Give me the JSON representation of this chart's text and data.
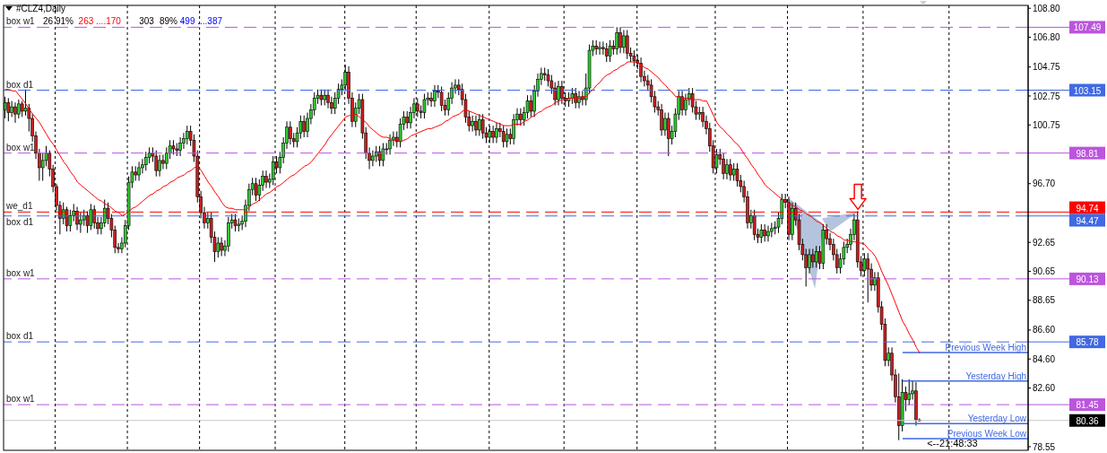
{
  "chart_data": {
    "type": "candlestick",
    "title": "#CLZ4,Daily",
    "annotations": [
      "26 91%",
      "263 ....170",
      "303",
      "89%",
      "499 ....387",
      "<--21:48:33",
      {
        "text": "box w1",
        "y": 107.49
      },
      {
        "text": "box d1",
        "y": 103.15
      },
      {
        "text": "box w1",
        "y": 98.81
      },
      {
        "text": "we_d1",
        "y": 94.74
      },
      {
        "text": "box d1",
        "y": 94.47
      },
      {
        "text": "box w1",
        "y": 90.13
      },
      {
        "text": "box d1",
        "y": 85.78
      },
      {
        "text": "box w1",
        "y": 81.45
      }
    ],
    "categories": [
      null,
      null,
      null,
      null,
      null,
      null,
      null,
      null,
      null,
      null,
      null,
      null,
      null,
      null,
      null,
      null,
      null,
      null,
      null,
      null,
      null,
      null,
      null,
      null,
      null,
      null,
      null,
      null,
      null,
      null,
      null,
      null,
      null,
      null,
      null,
      null,
      null,
      null,
      null,
      null,
      null,
      null,
      null,
      null,
      null,
      null,
      null,
      null,
      null,
      null,
      null,
      null,
      null,
      null,
      null,
      null,
      null,
      null,
      null,
      null,
      null,
      null,
      null,
      null,
      null,
      null,
      null,
      null,
      null,
      null,
      null,
      null,
      null,
      null,
      null,
      null,
      null,
      null,
      null,
      null,
      null,
      null,
      null,
      null,
      null,
      null,
      null,
      null,
      null,
      null,
      null,
      null,
      null,
      null,
      null,
      null,
      null,
      null,
      null,
      null,
      null,
      null,
      null,
      null,
      null,
      null,
      null,
      null,
      null,
      null,
      null,
      null,
      null,
      null,
      null,
      null,
      null,
      null,
      null,
      null,
      null,
      null,
      null,
      null,
      null,
      null,
      null,
      null,
      null,
      null,
      null,
      null,
      null,
      null,
      null,
      null,
      null,
      null,
      null,
      null,
      null,
      null,
      null,
      null,
      null,
      null,
      null,
      null,
      null,
      null,
      null,
      null,
      null,
      null,
      null,
      null,
      null,
      null,
      null,
      null,
      null,
      null,
      null,
      null,
      null,
      null,
      null,
      null,
      null,
      null,
      null,
      null,
      null,
      null,
      null,
      null,
      null,
      null,
      null,
      null,
      null,
      null,
      null,
      null,
      null,
      null,
      null,
      null,
      null,
      null,
      null,
      null,
      null,
      null,
      null,
      null,
      null,
      null,
      null,
      null,
      null,
      null,
      null,
      null,
      null,
      null,
      null,
      null,
      null,
      null,
      null,
      null,
      null,
      null,
      null,
      null,
      null,
      null,
      null,
      null,
      null,
      null,
      null,
      null,
      null,
      null,
      null,
      null,
      null,
      null,
      null,
      null,
      null,
      null,
      null,
      null,
      null,
      null,
      null,
      null,
      null,
      null,
      null,
      null,
      null,
      null,
      null,
      null,
      null,
      null,
      null,
      null,
      null,
      null,
      null,
      null,
      null,
      null,
      null,
      null,
      null,
      null,
      null,
      null,
      null,
      null,
      null
    ],
    "ohlc": [
      [
        101.8,
        102.7,
        101.2,
        102.3
      ],
      [
        102.3,
        102.6,
        101.0,
        101.6
      ],
      [
        101.6,
        102.4,
        101.3,
        102.0
      ],
      [
        102.0,
        102.3,
        100.9,
        101.5
      ],
      [
        101.5,
        102.5,
        101.2,
        102.2
      ],
      [
        102.2,
        102.4,
        101.3,
        101.7
      ],
      [
        101.7,
        103.2,
        101.4,
        101.9
      ],
      [
        101.9,
        102.2,
        100.3,
        101.2
      ],
      [
        101.2,
        101.5,
        99.6,
        100.0
      ],
      [
        100.0,
        100.3,
        98.4,
        98.8
      ],
      [
        98.8,
        99.1,
        96.9,
        97.8
      ],
      [
        97.8,
        98.8,
        96.9,
        98.3
      ],
      [
        98.3,
        99.3,
        97.9,
        98.8
      ],
      [
        98.8,
        99.0,
        97.2,
        97.7
      ],
      [
        97.7,
        98.0,
        96.1,
        96.5
      ],
      [
        96.5,
        96.7,
        94.8,
        95.2
      ],
      [
        95.2,
        95.5,
        93.2,
        94.3
      ],
      [
        94.3,
        95.4,
        93.9,
        94.9
      ],
      [
        94.9,
        95.1,
        93.4,
        93.8
      ],
      [
        93.8,
        94.9,
        93.4,
        94.5
      ],
      [
        94.5,
        95.3,
        94.1,
        94.8
      ],
      [
        94.8,
        95.1,
        93.5,
        93.9
      ],
      [
        93.9,
        94.7,
        93.3,
        94.2
      ],
      [
        94.2,
        94.9,
        93.8,
        94.5
      ],
      [
        94.5,
        94.8,
        93.3,
        93.8
      ],
      [
        93.8,
        95.3,
        93.5,
        94.9
      ],
      [
        94.9,
        95.2,
        93.6,
        94.0
      ],
      [
        94.0,
        94.4,
        93.2,
        93.6
      ],
      [
        93.6,
        94.4,
        93.2,
        94.0
      ],
      [
        94.0,
        95.6,
        93.7,
        95.0
      ],
      [
        95.0,
        95.4,
        93.9,
        94.3
      ],
      [
        94.3,
        94.6,
        93.0,
        93.5
      ],
      [
        93.5,
        93.8,
        91.9,
        92.3
      ],
      [
        92.3,
        92.6,
        91.9,
        92.2
      ],
      [
        92.2,
        93.0,
        91.9,
        92.6
      ],
      [
        92.6,
        94.2,
        92.3,
        93.8
      ],
      [
        93.8,
        97.2,
        93.5,
        96.8
      ],
      [
        96.8,
        97.9,
        96.4,
        97.5
      ],
      [
        97.5,
        97.9,
        96.9,
        97.3
      ],
      [
        97.3,
        98.2,
        96.9,
        97.8
      ],
      [
        97.8,
        98.4,
        97.4,
        98.0
      ],
      [
        98.0,
        98.9,
        97.6,
        98.5
      ],
      [
        98.5,
        99.2,
        98.1,
        98.8
      ],
      [
        98.8,
        99.2,
        98.2,
        98.6
      ],
      [
        98.6,
        99.0,
        97.2,
        97.6
      ],
      [
        97.6,
        98.7,
        97.2,
        98.3
      ],
      [
        98.3,
        98.7,
        97.7,
        98.1
      ],
      [
        98.1,
        99.2,
        97.7,
        98.8
      ],
      [
        98.8,
        99.7,
        98.4,
        99.3
      ],
      [
        99.3,
        99.7,
        98.7,
        99.1
      ],
      [
        99.1,
        99.5,
        98.6,
        99.0
      ],
      [
        99.0,
        99.9,
        98.6,
        99.5
      ],
      [
        99.5,
        100.2,
        99.1,
        99.8
      ],
      [
        99.8,
        100.7,
        99.4,
        100.3
      ],
      [
        100.3,
        100.7,
        99.3,
        99.7
      ],
      [
        99.7,
        100.1,
        98.2,
        98.6
      ],
      [
        98.6,
        99.0,
        95.4,
        95.8
      ],
      [
        95.8,
        96.2,
        94.3,
        94.7
      ],
      [
        94.7,
        95.1,
        93.6,
        94.0
      ],
      [
        94.0,
        94.7,
        93.6,
        94.3
      ],
      [
        94.3,
        94.7,
        92.6,
        93.0
      ],
      [
        93.0,
        93.4,
        91.3,
        92.0
      ],
      [
        92.0,
        93.0,
        91.6,
        92.6
      ],
      [
        92.6,
        93.0,
        91.7,
        92.1
      ],
      [
        92.1,
        92.8,
        91.7,
        92.4
      ],
      [
        92.4,
        94.4,
        92.0,
        94.0
      ],
      [
        94.0,
        94.6,
        93.6,
        94.2
      ],
      [
        94.2,
        94.6,
        93.4,
        93.8
      ],
      [
        93.8,
        94.3,
        93.4,
        93.9
      ],
      [
        93.9,
        94.5,
        93.5,
        94.1
      ],
      [
        94.1,
        95.6,
        93.7,
        95.2
      ],
      [
        95.2,
        96.7,
        94.8,
        96.3
      ],
      [
        96.3,
        97.1,
        95.9,
        96.7
      ],
      [
        96.7,
        97.1,
        95.5,
        95.9
      ],
      [
        95.9,
        97.0,
        95.5,
        96.6
      ],
      [
        96.6,
        97.6,
        96.2,
        97.2
      ],
      [
        97.2,
        97.6,
        96.4,
        96.8
      ],
      [
        96.8,
        97.4,
        96.4,
        97.0
      ],
      [
        97.0,
        98.6,
        96.6,
        98.2
      ],
      [
        98.2,
        98.6,
        97.4,
        97.8
      ],
      [
        97.8,
        98.9,
        97.4,
        98.5
      ],
      [
        98.5,
        99.9,
        98.1,
        99.5
      ],
      [
        99.5,
        101.0,
        99.1,
        100.6
      ],
      [
        100.6,
        101.0,
        99.4,
        99.8
      ],
      [
        99.8,
        100.2,
        99.2,
        99.6
      ],
      [
        99.6,
        100.6,
        99.2,
        100.2
      ],
      [
        100.2,
        101.4,
        99.8,
        101.0
      ],
      [
        101.0,
        101.4,
        99.9,
        100.3
      ],
      [
        100.3,
        101.6,
        99.9,
        101.2
      ],
      [
        101.2,
        102.2,
        100.8,
        101.8
      ],
      [
        101.8,
        103.0,
        101.4,
        102.6
      ],
      [
        102.6,
        103.2,
        102.2,
        102.8
      ],
      [
        102.8,
        103.2,
        102.1,
        102.5
      ],
      [
        102.5,
        103.2,
        102.1,
        102.8
      ],
      [
        102.8,
        103.2,
        101.9,
        102.3
      ],
      [
        102.3,
        102.7,
        101.5,
        101.9
      ],
      [
        101.9,
        103.0,
        101.5,
        102.6
      ],
      [
        102.6,
        103.6,
        102.2,
        103.2
      ],
      [
        103.2,
        103.9,
        102.8,
        103.5
      ],
      [
        103.5,
        104.9,
        103.1,
        104.4
      ],
      [
        104.4,
        104.8,
        102.2,
        102.6
      ],
      [
        102.6,
        103.0,
        100.6,
        101.0
      ],
      [
        101.0,
        102.3,
        100.6,
        101.9
      ],
      [
        101.9,
        102.9,
        101.5,
        102.5
      ],
      [
        102.5,
        102.9,
        99.8,
        100.2
      ],
      [
        100.2,
        100.6,
        98.4,
        98.8
      ],
      [
        98.8,
        99.2,
        97.7,
        98.3
      ],
      [
        98.3,
        99.0,
        97.9,
        98.6
      ],
      [
        98.6,
        99.3,
        98.2,
        98.9
      ],
      [
        98.9,
        99.3,
        97.9,
        98.3
      ],
      [
        98.3,
        99.5,
        97.9,
        99.1
      ],
      [
        99.1,
        99.5,
        98.7,
        99.1
      ],
      [
        99.1,
        100.1,
        98.7,
        99.7
      ],
      [
        99.7,
        100.3,
        99.3,
        99.9
      ],
      [
        99.9,
        100.3,
        99.2,
        99.6
      ],
      [
        99.6,
        101.2,
        99.2,
        100.8
      ],
      [
        100.8,
        101.7,
        100.4,
        101.3
      ],
      [
        101.3,
        101.7,
        100.5,
        100.9
      ],
      [
        100.9,
        102.0,
        100.5,
        101.6
      ],
      [
        101.6,
        102.6,
        101.2,
        102.2
      ],
      [
        102.2,
        102.6,
        101.3,
        101.7
      ],
      [
        101.7,
        102.1,
        101.2,
        101.6
      ],
      [
        101.6,
        102.9,
        101.2,
        102.5
      ],
      [
        102.5,
        103.0,
        102.1,
        102.6
      ],
      [
        102.6,
        103.0,
        102.0,
        102.4
      ],
      [
        102.4,
        103.5,
        102.0,
        103.1
      ],
      [
        103.1,
        103.5,
        102.6,
        103.0
      ],
      [
        103.0,
        103.4,
        101.7,
        102.1
      ],
      [
        102.1,
        102.5,
        101.4,
        101.8
      ],
      [
        101.8,
        103.0,
        101.4,
        102.6
      ],
      [
        102.6,
        103.7,
        102.2,
        103.3
      ],
      [
        103.3,
        103.9,
        102.9,
        103.5
      ],
      [
        103.5,
        103.9,
        102.8,
        103.2
      ],
      [
        103.2,
        103.6,
        102.1,
        102.5
      ],
      [
        102.5,
        102.9,
        100.9,
        101.3
      ],
      [
        101.3,
        101.7,
        100.3,
        100.7
      ],
      [
        100.7,
        101.4,
        100.3,
        101.0
      ],
      [
        101.0,
        101.4,
        100.0,
        100.4
      ],
      [
        100.4,
        101.5,
        100.0,
        101.1
      ],
      [
        101.1,
        101.5,
        99.8,
        100.2
      ],
      [
        100.2,
        100.6,
        99.5,
        99.9
      ],
      [
        99.9,
        100.7,
        99.5,
        100.3
      ],
      [
        100.3,
        100.7,
        99.5,
        99.9
      ],
      [
        99.9,
        100.9,
        99.5,
        100.5
      ],
      [
        100.5,
        100.9,
        99.9,
        100.3
      ],
      [
        100.3,
        100.7,
        99.2,
        99.6
      ],
      [
        99.6,
        100.5,
        99.2,
        100.1
      ],
      [
        100.1,
        100.5,
        99.4,
        99.8
      ],
      [
        99.8,
        101.5,
        99.4,
        101.1
      ],
      [
        101.1,
        101.9,
        100.7,
        101.5
      ],
      [
        101.5,
        101.9,
        100.7,
        101.1
      ],
      [
        101.1,
        102.0,
        100.7,
        101.6
      ],
      [
        101.6,
        102.8,
        101.2,
        102.4
      ],
      [
        102.4,
        102.8,
        101.3,
        101.7
      ],
      [
        101.7,
        103.5,
        101.3,
        103.1
      ],
      [
        103.1,
        104.3,
        102.7,
        103.9
      ],
      [
        103.9,
        104.7,
        103.5,
        104.3
      ],
      [
        104.3,
        104.7,
        103.8,
        104.2
      ],
      [
        104.2,
        104.6,
        103.4,
        103.8
      ],
      [
        103.8,
        104.2,
        102.9,
        103.3
      ],
      [
        103.3,
        103.7,
        102.1,
        102.5
      ],
      [
        102.5,
        103.8,
        102.1,
        103.4
      ],
      [
        103.4,
        103.8,
        102.2,
        102.6
      ],
      [
        102.6,
        103.0,
        102.0,
        102.4
      ],
      [
        102.4,
        103.0,
        102.0,
        102.6
      ],
      [
        102.6,
        103.3,
        102.2,
        102.9
      ],
      [
        102.9,
        103.3,
        101.9,
        102.3
      ],
      [
        102.3,
        103.1,
        101.9,
        102.7
      ],
      [
        102.7,
        103.1,
        102.1,
        102.5
      ],
      [
        102.5,
        104.3,
        102.1,
        103.3
      ],
      [
        103.3,
        106.3,
        102.9,
        105.9
      ],
      [
        105.9,
        106.6,
        105.5,
        106.2
      ],
      [
        106.2,
        106.6,
        105.6,
        106.0
      ],
      [
        106.0,
        106.5,
        105.6,
        106.1
      ],
      [
        106.1,
        106.5,
        105.6,
        106.0
      ],
      [
        106.0,
        106.4,
        105.1,
        105.5
      ],
      [
        105.5,
        106.6,
        105.1,
        106.2
      ],
      [
        106.2,
        106.6,
        105.6,
        106.0
      ],
      [
        106.0,
        107.5,
        105.6,
        107.1
      ],
      [
        107.1,
        107.5,
        105.7,
        106.1
      ],
      [
        106.1,
        107.3,
        105.7,
        106.9
      ],
      [
        106.9,
        107.3,
        105.3,
        105.7
      ],
      [
        105.7,
        106.1,
        105.1,
        105.5
      ],
      [
        105.5,
        105.9,
        104.8,
        105.2
      ],
      [
        105.2,
        105.6,
        104.6,
        105.0
      ],
      [
        105.0,
        105.4,
        103.7,
        104.1
      ],
      [
        104.1,
        104.5,
        103.4,
        103.8
      ],
      [
        103.8,
        104.2,
        103.1,
        103.5
      ],
      [
        103.5,
        103.9,
        102.3,
        102.7
      ],
      [
        102.7,
        103.1,
        101.6,
        102.0
      ],
      [
        102.0,
        102.4,
        101.4,
        101.8
      ],
      [
        101.8,
        102.2,
        100.0,
        100.4
      ],
      [
        100.4,
        101.6,
        100.0,
        101.2
      ],
      [
        101.2,
        101.6,
        98.6,
        99.8
      ],
      [
        99.8,
        100.7,
        99.4,
        100.3
      ],
      [
        100.3,
        101.9,
        99.9,
        101.5
      ],
      [
        101.5,
        103.1,
        101.1,
        102.7
      ],
      [
        102.7,
        103.1,
        101.4,
        101.8
      ],
      [
        101.8,
        102.9,
        101.4,
        102.5
      ],
      [
        102.5,
        103.3,
        102.1,
        102.9
      ],
      [
        102.9,
        103.3,
        101.6,
        102.0
      ],
      [
        102.0,
        102.4,
        101.1,
        101.5
      ],
      [
        101.5,
        102.0,
        101.1,
        101.6
      ],
      [
        101.6,
        102.0,
        100.6,
        101.0
      ],
      [
        101.0,
        101.4,
        100.1,
        100.5
      ],
      [
        100.5,
        100.9,
        98.9,
        99.3
      ],
      [
        99.3,
        99.7,
        97.4,
        97.8
      ],
      [
        97.8,
        99.1,
        97.4,
        98.7
      ],
      [
        98.7,
        99.1,
        98.0,
        98.4
      ],
      [
        98.4,
        98.8,
        97.0,
        97.4
      ],
      [
        97.4,
        98.4,
        97.0,
        98.0
      ],
      [
        98.0,
        98.4,
        96.9,
        97.3
      ],
      [
        97.3,
        98.1,
        96.9,
        97.7
      ],
      [
        97.7,
        98.1,
        96.5,
        96.9
      ],
      [
        96.9,
        97.3,
        96.1,
        96.5
      ],
      [
        96.5,
        96.9,
        95.4,
        95.8
      ],
      [
        95.8,
        96.2,
        93.6,
        94.0
      ],
      [
        94.0,
        94.9,
        93.6,
        94.5
      ],
      [
        94.5,
        94.9,
        92.8,
        93.2
      ],
      [
        93.2,
        93.6,
        92.6,
        93.0
      ],
      [
        93.0,
        93.9,
        92.6,
        93.5
      ],
      [
        93.5,
        93.9,
        92.7,
        93.1
      ],
      [
        93.1,
        93.8,
        92.7,
        93.4
      ],
      [
        93.4,
        94.0,
        93.0,
        93.6
      ],
      [
        93.6,
        94.1,
        93.2,
        93.7
      ],
      [
        93.7,
        94.7,
        93.3,
        94.3
      ],
      [
        94.3,
        96.0,
        93.9,
        95.6
      ],
      [
        95.6,
        96.0,
        95.0,
        95.4
      ],
      [
        95.4,
        95.8,
        92.8,
        93.2
      ],
      [
        93.2,
        95.4,
        92.8,
        95.0
      ],
      [
        95.0,
        95.4,
        93.8,
        94.2
      ],
      [
        94.2,
        94.6,
        92.1,
        92.5
      ],
      [
        92.5,
        92.9,
        91.4,
        91.8
      ],
      [
        91.8,
        92.2,
        89.6,
        90.9
      ],
      [
        90.9,
        92.2,
        90.5,
        91.8
      ],
      [
        91.8,
        92.2,
        90.9,
        91.3
      ],
      [
        91.3,
        92.4,
        90.9,
        92.0
      ],
      [
        92.0,
        92.4,
        90.8,
        91.2
      ],
      [
        91.2,
        93.9,
        90.8,
        93.5
      ],
      [
        93.5,
        93.9,
        92.5,
        92.9
      ],
      [
        92.9,
        93.3,
        92.1,
        92.5
      ],
      [
        92.5,
        92.9,
        91.4,
        91.8
      ],
      [
        91.8,
        92.2,
        90.5,
        90.9
      ],
      [
        90.9,
        91.9,
        90.5,
        91.5
      ],
      [
        91.5,
        92.7,
        91.1,
        92.3
      ],
      [
        92.3,
        92.9,
        91.9,
        92.5
      ],
      [
        92.5,
        93.6,
        92.1,
        93.2
      ],
      [
        93.2,
        94.6,
        92.8,
        94.2
      ],
      [
        94.2,
        94.8,
        90.9,
        91.3
      ],
      [
        91.3,
        91.7,
        90.3,
        90.7
      ],
      [
        90.7,
        91.9,
        90.3,
        91.5
      ],
      [
        91.5,
        91.9,
        88.5,
        90.8
      ],
      [
        90.8,
        91.2,
        89.3,
        89.7
      ],
      [
        89.7,
        90.6,
        89.3,
        90.2
      ],
      [
        90.2,
        90.6,
        87.8,
        88.2
      ],
      [
        88.2,
        88.6,
        86.6,
        87.0
      ],
      [
        87.0,
        87.4,
        84.1,
        84.5
      ],
      [
        84.5,
        85.4,
        84.1,
        85.0
      ],
      [
        85.0,
        85.4,
        83.1,
        83.5
      ],
      [
        83.5,
        83.9,
        81.6,
        82.0
      ],
      [
        82.0,
        83.6,
        79.0,
        80.0
      ],
      [
        80.0,
        83.2,
        79.6,
        82.3
      ],
      [
        82.3,
        82.7,
        81.0,
        81.8
      ],
      [
        81.8,
        83.2,
        81.4,
        82.2
      ],
      [
        82.2,
        83.1,
        81.8,
        82.4
      ],
      [
        82.4,
        83.0,
        80.0,
        80.4
      ],
      [
        80.4,
        80.5,
        80.3,
        80.36
      ]
    ],
    "series": [
      {
        "type": "line",
        "color": "#ff0000",
        "values": [
          103.2,
          103.2,
          103.1,
          103.1,
          102.8,
          102.5,
          102.2,
          101.8,
          101.5,
          101.2,
          100.9,
          100.5,
          100.1,
          99.7,
          99.4,
          99.0,
          98.6,
          98.2,
          97.9,
          97.5,
          97.2,
          96.8,
          96.6,
          96.4,
          96.2,
          96.0,
          95.8,
          95.6,
          95.5,
          95.3,
          95.2,
          95.0,
          94.8,
          94.7,
          94.5,
          94.6,
          94.8,
          95.0,
          95.1,
          95.3,
          95.5,
          95.7,
          95.9,
          96.0,
          96.2,
          96.3,
          96.5,
          96.6,
          96.8,
          96.9,
          97.1,
          97.2,
          97.3,
          97.5,
          97.6,
          97.8,
          97.9,
          97.6,
          97.2,
          96.8,
          96.5,
          96.1,
          95.8,
          95.4,
          95.1,
          95.0,
          95.0,
          94.9,
          94.9,
          94.9,
          94.9,
          95.1,
          95.3,
          95.4,
          95.6,
          95.8,
          96.0,
          96.1,
          96.3,
          96.5,
          96.6,
          96.8,
          97.0,
          97.2,
          97.3,
          97.5,
          97.7,
          97.9,
          98.0,
          98.2,
          98.5,
          98.8,
          99.1,
          99.4,
          99.8,
          100.1,
          100.4,
          100.7,
          101.0,
          101.3,
          101.4,
          101.4,
          101.5,
          101.3,
          101.1,
          100.9,
          100.6,
          100.4,
          100.2,
          100.0,
          99.9,
          99.9,
          99.8,
          99.7,
          99.7,
          99.6,
          99.7,
          99.8,
          100.0,
          100.1,
          100.2,
          100.3,
          100.4,
          100.5,
          100.5,
          100.6,
          100.7,
          100.8,
          101.0,
          101.1,
          101.3,
          101.4,
          101.5,
          101.7,
          101.8,
          101.7,
          101.6,
          101.5,
          101.4,
          101.3,
          101.2,
          101.1,
          101.0,
          100.9,
          100.8,
          100.7,
          100.7,
          100.7,
          100.8,
          100.8,
          100.8,
          101.0,
          101.1,
          101.3,
          101.4,
          101.6,
          101.7,
          101.9,
          102.0,
          102.1,
          102.3,
          102.4,
          102.5,
          102.5,
          102.6,
          102.6,
          102.6,
          102.6,
          102.7,
          102.7,
          103.0,
          103.2,
          103.5,
          103.7,
          104.0,
          104.2,
          104.3,
          104.5,
          104.6,
          104.8,
          104.9,
          105.1,
          105.1,
          105.1,
          105.1,
          104.9,
          104.7,
          104.6,
          104.4,
          104.2,
          104.0,
          103.7,
          103.5,
          103.2,
          103.0,
          102.7,
          102.7,
          102.6,
          102.6,
          102.6,
          102.5,
          102.5,
          102.5,
          102.4,
          102.4,
          101.9,
          101.4,
          100.9,
          100.6,
          100.4,
          100.1,
          99.9,
          99.6,
          99.4,
          99.1,
          98.7,
          98.4,
          98.0,
          97.7,
          97.3,
          97.0,
          96.6,
          96.4,
          96.2,
          96.0,
          95.8,
          95.6,
          95.5,
          95.3,
          95.2,
          95.1,
          94.9,
          94.8,
          94.6,
          94.5,
          94.3,
          94.1,
          94.0,
          93.8,
          93.6,
          93.4,
          93.3,
          93.1,
          93.0,
          92.8,
          92.8,
          92.7,
          92.7,
          92.6,
          92.6,
          92.5,
          92.2,
          92.0,
          91.7,
          91.2,
          90.6,
          90.1,
          89.6,
          89.0,
          88.4,
          87.8,
          87.2,
          86.8,
          86.3,
          85.9,
          85.4,
          85.0
        ]
      }
    ],
    "ylim": [
      78.3,
      109
    ],
    "yticks": [
      {
        "value": 108.8,
        "label": "108.80"
      },
      {
        "value": 106.8,
        "label": "106.80"
      },
      104.75,
      102.75,
      100.75,
      {
        "value": 96.7,
        "label": "96.70"
      },
      92.65,
      90.65,
      88.65,
      {
        "value": 86.6,
        "label": "86.60"
      },
      {
        "value": 84.6,
        "label": "84.60"
      },
      {
        "value": 82.6,
        "label": "82.60"
      },
      78.55
    ],
    "tick_labels": "y",
    "grid": "x",
    "marker": "none",
    "ref_lines": [
      {
        "axis": "y",
        "value": 107.49,
        "label": "107.49",
        "color": "#bb55dd",
        "line_style": "dashed"
      },
      {
        "axis": "y",
        "value": 103.15,
        "label": "103.15",
        "color": "#4169e1",
        "line_style": "dashed"
      },
      {
        "axis": "y",
        "value": 98.81,
        "label": "98.81",
        "color": "#bb55dd",
        "line_style": "dashed"
      },
      {
        "axis": "y",
        "value": 94.74,
        "label": "94.74",
        "color": "#ff0000",
        "line_style": "dashed"
      },
      {
        "axis": "y",
        "value": 94.47,
        "label": "94.47",
        "color": "#4169e1",
        "line_style": "dashed"
      },
      {
        "axis": "y",
        "value": 90.13,
        "label": "90.13",
        "color": "#bb55dd",
        "line_style": "dashed"
      },
      {
        "axis": "y",
        "value": 85.78,
        "label": "85.78",
        "color": "#4169e1",
        "line_style": "dashed"
      },
      {
        "axis": "y",
        "value": 81.45,
        "label": "81.45",
        "color": "#bb55dd",
        "line_style": "dashed"
      },
      {
        "axis": "y",
        "value": 80.36,
        "label": "80.36",
        "color": "#c8c8c8"
      },
      {
        "axis": "y",
        "value": 85.04,
        "label": "Previous Week High",
        "color": "#4169e1",
        "line_style": "solid"
      },
      {
        "axis": "y",
        "value": 83.08,
        "label": "Yesterday High",
        "color": "#4169e1",
        "line_style": "solid"
      },
      {
        "axis": "y",
        "value": 80.14,
        "label": "Yesterday Low",
        "color": "#4169e1",
        "line_style": "solid"
      },
      {
        "axis": "y",
        "value": 79.1,
        "label": "Previous Week Low",
        "color": "#4169e1",
        "line_style": "solid"
      }
    ]
  }
}
